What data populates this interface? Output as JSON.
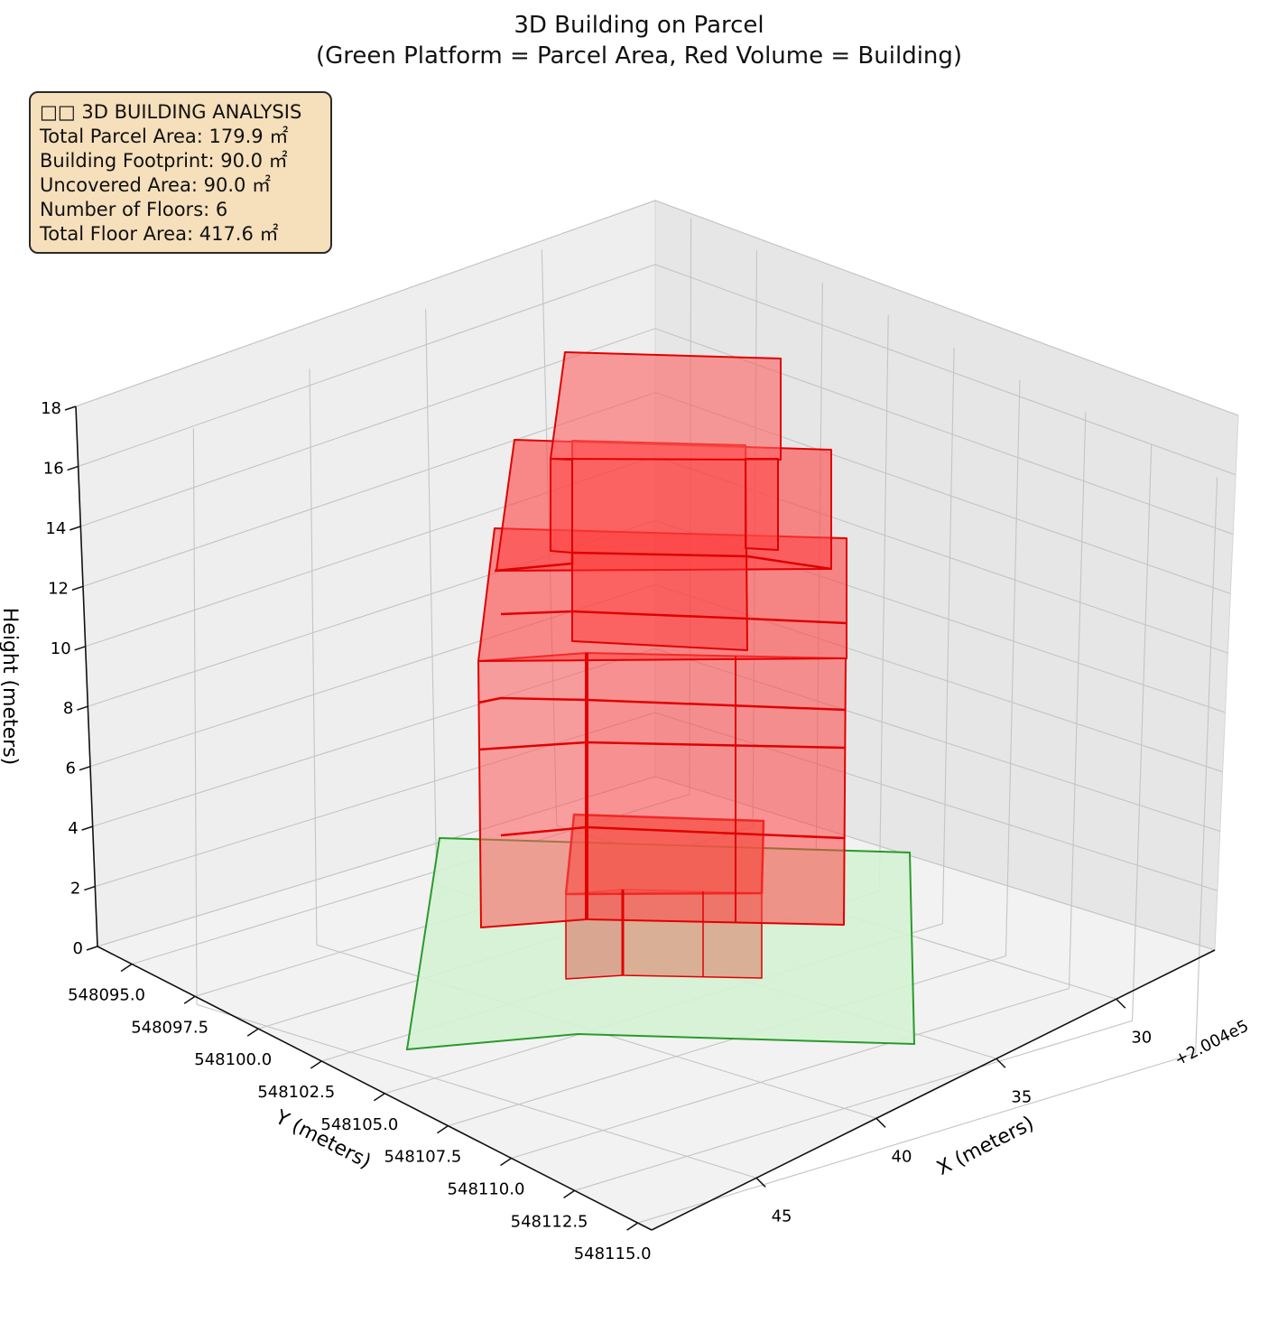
{
  "title": {
    "line1": "3D Building on Parcel",
    "line2": "(Green Platform = Parcel Area, Red Volume = Building)"
  },
  "info_box": {
    "heading": "□□ 3D BUILDING ANALYSIS",
    "lines": [
      "Total Parcel Area: 179.9 ㎡",
      "Building Footprint: 90.0 ㎡",
      "Uncovered Area: 90.0 ㎡",
      "Number of Floors: 6",
      "Total Floor Area: 417.6 ㎡"
    ]
  },
  "colors": {
    "parcel_fill": "#d5f2d5",
    "parcel_edge": "#2a9a2a",
    "building_fill": "#ff4040",
    "building_edge": "#e00000",
    "info_bg": "#f6dfbb"
  },
  "chart_data": {
    "type": "3d-surface",
    "title": "3D Building on Parcel\n(Green Platform = Parcel Area, Red Volume = Building)",
    "xlabel": "X (meters)",
    "ylabel": "Y (meters)",
    "zlabel": "Height (meters)",
    "x_offset_label": "+2.004e5",
    "x_ticks": [
      "30",
      "35",
      "40",
      "45"
    ],
    "y_ticks": [
      "548095.0",
      "548097.5",
      "548100.0",
      "548102.5",
      "548105.0",
      "548107.5",
      "548110.0",
      "548112.5",
      "548115.0"
    ],
    "z_ticks": [
      "0",
      "2",
      "4",
      "6",
      "8",
      "10",
      "12",
      "14",
      "16",
      "18"
    ],
    "zlim": [
      0,
      18
    ],
    "grid": true,
    "floors": 6,
    "floor_height_m": 3,
    "building_height_m": 18,
    "parcel_area_m2": 179.9,
    "building_footprint_m2": 90.0,
    "uncovered_area_m2": 90.0,
    "total_floor_area_m2": 417.6
  }
}
